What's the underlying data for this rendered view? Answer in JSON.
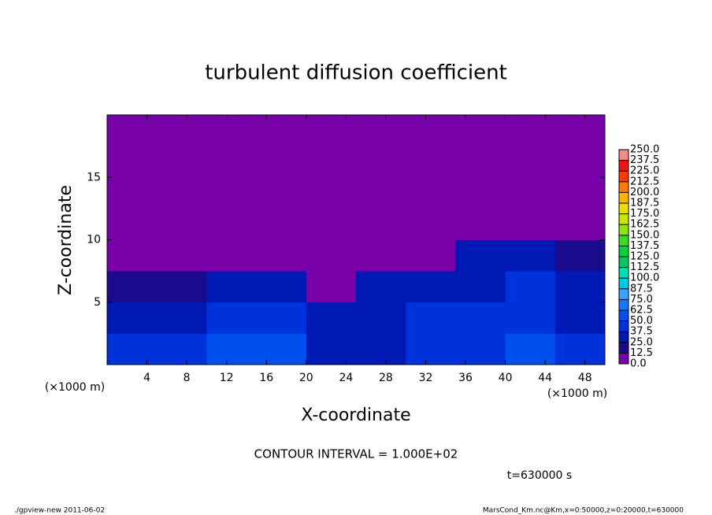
{
  "chart_data": {
    "type": "heatmap",
    "title": "turbulent diffusion coefficient",
    "x_label": "X-coordinate",
    "y_label": "Z-coordinate",
    "x_unit_label": "(×1000 m)",
    "y_unit_label": "(×1000 m)",
    "xlim": [
      0,
      50
    ],
    "ylim": [
      0,
      20
    ],
    "xticks": [
      4,
      8,
      12,
      16,
      20,
      24,
      28,
      32,
      36,
      40,
      44,
      48
    ],
    "yticks": [
      5,
      10,
      15
    ],
    "x": [
      0,
      5,
      10,
      15,
      20,
      25,
      30,
      35,
      40,
      45,
      50
    ],
    "y": [
      0,
      2.5,
      5,
      7.5,
      10,
      12.5,
      15,
      17.5,
      20
    ],
    "z": [
      [
        40,
        30,
        15,
        0,
        0,
        0,
        0,
        0
      ],
      [
        45,
        35,
        20,
        0,
        0,
        0,
        0,
        0
      ],
      [
        60,
        40,
        25,
        5,
        0,
        0,
        0,
        0
      ],
      [
        50,
        40,
        35,
        10,
        0,
        0,
        0,
        0
      ],
      [
        35,
        30,
        10,
        0,
        0,
        0,
        0,
        0
      ],
      [
        35,
        30,
        25,
        0,
        0,
        0,
        0,
        0
      ],
      [
        40,
        40,
        35,
        10,
        0,
        0,
        0,
        0
      ],
      [
        45,
        40,
        35,
        30,
        0,
        0,
        0,
        0
      ],
      [
        55,
        45,
        40,
        35,
        5,
        0,
        0,
        0
      ],
      [
        40,
        35,
        30,
        15,
        0,
        0,
        0,
        0
      ]
    ],
    "colorbar": {
      "ticks": [
        {
          "value": 0,
          "label": "0.0"
        },
        {
          "value": 12.5,
          "label": "12.5"
        },
        {
          "value": 25,
          "label": "25.0"
        },
        {
          "value": 37.5,
          "label": "37.5"
        },
        {
          "value": 50,
          "label": "50.0"
        },
        {
          "value": 62.5,
          "label": "62.5"
        },
        {
          "value": 75,
          "label": "75.0"
        },
        {
          "value": 87.5,
          "label": "87.5"
        },
        {
          "value": 100,
          "label": "100.0"
        },
        {
          "value": 112.5,
          "label": "112.5"
        },
        {
          "value": 125,
          "label": "125.0"
        },
        {
          "value": 137.5,
          "label": "137.5"
        },
        {
          "value": 150,
          "label": "150.0"
        },
        {
          "value": 162.5,
          "label": "162.5"
        },
        {
          "value": 175,
          "label": "175.0"
        },
        {
          "value": 187.5,
          "label": "187.5"
        },
        {
          "value": 200,
          "label": "200.0"
        },
        {
          "value": 212.5,
          "label": "212.5"
        },
        {
          "value": 225,
          "label": "225.0"
        },
        {
          "value": 237.5,
          "label": "237.5"
        },
        {
          "value": 250,
          "label": "250.0"
        }
      ],
      "colors": [
        "#7800a8",
        "#1a0a8c",
        "#0018b4",
        "#0032dc",
        "#0050f0",
        "#1478ff",
        "#3ca0ff",
        "#00c8e6",
        "#00dcb4",
        "#00c864",
        "#00d23c",
        "#3cdc1e",
        "#8ce614",
        "#c8e600",
        "#f0dc00",
        "#ffb400",
        "#ff7800",
        "#ff3c00",
        "#f01414",
        "#f08c8c"
      ]
    },
    "contour_interval": "CONTOUR INTERVAL = 1.000E+02",
    "time_label": "t=630000 s",
    "footer_left": "./gpview-new  2011-06-02",
    "footer_right": "MarsCond_Km.nc@Km,x=0:50000,z=0:20000,t=630000"
  }
}
